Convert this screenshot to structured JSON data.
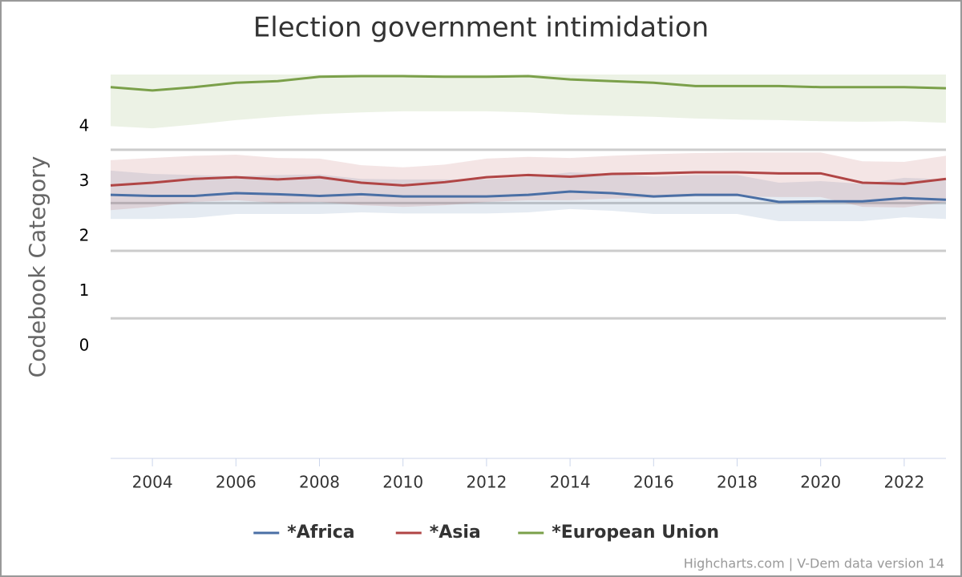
{
  "chart_data": {
    "type": "line",
    "title": "Election government intimidation",
    "y_axis_label": "Codebook Category",
    "credits": "Highcharts.com | V-Dem data version 14",
    "x": [
      2003,
      2004,
      2005,
      2006,
      2007,
      2008,
      2009,
      2010,
      2011,
      2012,
      2013,
      2014,
      2015,
      2016,
      2017,
      2018,
      2019,
      2020,
      2021,
      2022,
      2023
    ],
    "xlim": [
      2003,
      2023
    ],
    "xticks": [
      2004,
      2006,
      2008,
      2010,
      2012,
      2014,
      2016,
      2018,
      2020,
      2022
    ],
    "ylim": [
      -2.04,
      4.95
    ],
    "yticks": [
      0,
      1,
      2,
      3,
      4
    ],
    "grid_lines": [
      0.51,
      1.74,
      2.61,
      3.58
    ],
    "series": [
      {
        "name": "*Africa",
        "color": "#4a6fa5",
        "values": [
          2.76,
          2.74,
          2.74,
          2.79,
          2.77,
          2.74,
          2.77,
          2.73,
          2.73,
          2.73,
          2.76,
          2.82,
          2.79,
          2.73,
          2.76,
          2.76,
          2.63,
          2.64,
          2.64,
          2.7,
          2.67
        ],
        "upper": [
          3.2,
          3.14,
          3.12,
          3.1,
          3.12,
          3.13,
          3.05,
          3.04,
          3.04,
          3.04,
          3.09,
          3.17,
          3.14,
          3.09,
          3.12,
          3.12,
          2.98,
          3.01,
          2.96,
          3.07,
          3.04
        ],
        "lower": [
          2.32,
          2.32,
          2.34,
          2.41,
          2.41,
          2.41,
          2.44,
          2.42,
          2.42,
          2.42,
          2.44,
          2.5,
          2.47,
          2.41,
          2.41,
          2.41,
          2.28,
          2.28,
          2.28,
          2.35,
          2.32
        ]
      },
      {
        "name": "*Asia",
        "color": "#b04545",
        "values": [
          2.93,
          2.98,
          3.05,
          3.08,
          3.04,
          3.08,
          2.98,
          2.93,
          2.99,
          3.08,
          3.12,
          3.09,
          3.14,
          3.15,
          3.17,
          3.17,
          3.15,
          3.15,
          2.98,
          2.96,
          3.05
        ],
        "upper": [
          3.39,
          3.43,
          3.47,
          3.49,
          3.43,
          3.42,
          3.3,
          3.26,
          3.31,
          3.42,
          3.45,
          3.43,
          3.47,
          3.5,
          3.52,
          3.53,
          3.53,
          3.53,
          3.37,
          3.36,
          3.47
        ],
        "lower": [
          2.48,
          2.54,
          2.63,
          2.66,
          2.61,
          2.63,
          2.57,
          2.54,
          2.57,
          2.63,
          2.66,
          2.66,
          2.69,
          2.7,
          2.73,
          2.73,
          2.72,
          2.72,
          2.54,
          2.53,
          2.63
        ]
      },
      {
        "name": "*European Union",
        "color": "#7ba04a",
        "values": [
          4.72,
          4.66,
          4.72,
          4.8,
          4.83,
          4.91,
          4.92,
          4.92,
          4.91,
          4.91,
          4.92,
          4.86,
          4.83,
          4.8,
          4.74,
          4.74,
          4.74,
          4.72,
          4.72,
          4.72,
          4.7
        ],
        "upper": [
          4.95,
          4.95,
          4.95,
          4.95,
          4.95,
          4.95,
          4.95,
          4.95,
          4.95,
          4.95,
          4.95,
          4.95,
          4.95,
          4.95,
          4.95,
          4.95,
          4.95,
          4.95,
          4.95,
          4.95,
          4.95
        ],
        "lower": [
          4.01,
          3.97,
          4.04,
          4.12,
          4.18,
          4.23,
          4.26,
          4.28,
          4.28,
          4.28,
          4.26,
          4.22,
          4.2,
          4.18,
          4.15,
          4.13,
          4.12,
          4.1,
          4.09,
          4.1,
          4.07
        ]
      }
    ]
  }
}
